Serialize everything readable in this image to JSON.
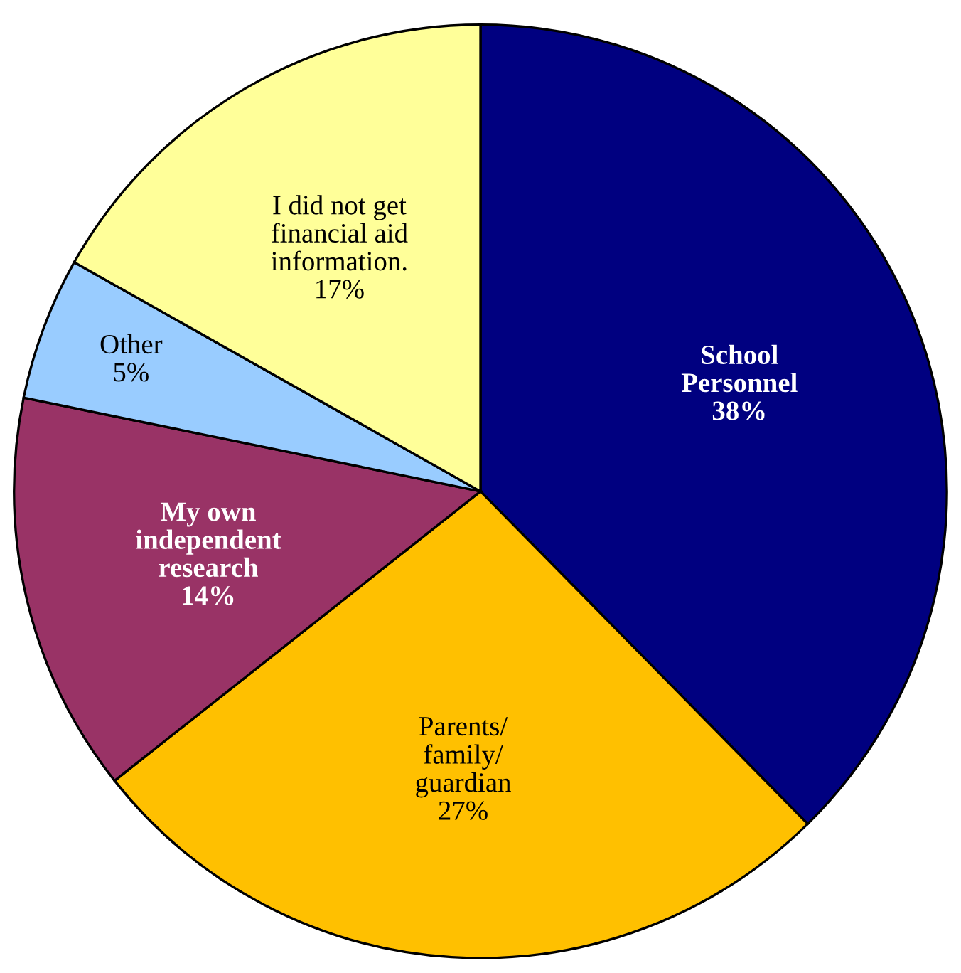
{
  "chart_data": {
    "type": "pie",
    "categories": [
      "School\nPersonnel",
      "Parents/\nfamily/\nguardian",
      "My own\nindependent\nresearch",
      "Other",
      "I did not get\nfinancial aid\ninformation."
    ],
    "values": [
      38,
      27,
      14,
      5,
      17
    ],
    "value_labels": [
      "38%",
      "27%",
      "14%",
      "5%",
      "17%"
    ],
    "colors": [
      "#000080",
      "#ffc000",
      "#993366",
      "#99ccff",
      "#ffff99"
    ],
    "legend": false
  }
}
